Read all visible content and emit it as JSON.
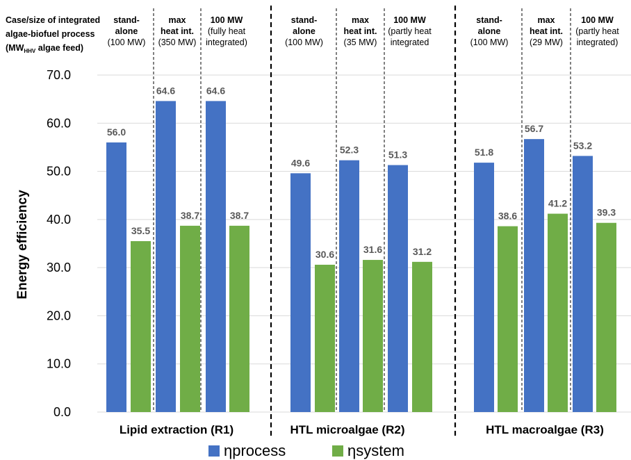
{
  "header": {
    "corner_label": [
      "Case/size of integrated",
      "algae-biofuel process"
    ],
    "corner_unit_prefix": "(MW",
    "corner_unit_sub": "HHV",
    "corner_unit_suffix": " algae feed)",
    "cases": [
      {
        "bold": [
          "stand-",
          "alone"
        ],
        "normal": [
          "(100 MW)"
        ]
      },
      {
        "bold": [
          "max",
          "heat int."
        ],
        "normal": [
          "(350 MW)"
        ]
      },
      {
        "bold": [
          "100 MW"
        ],
        "normal": [
          "(fully heat",
          "integrated)"
        ]
      },
      {
        "bold": [
          "stand-",
          "alone"
        ],
        "normal": [
          "(100 MW)"
        ]
      },
      {
        "bold": [
          "max",
          "heat int."
        ],
        "normal": [
          "(35 MW)"
        ]
      },
      {
        "bold": [
          "100 MW"
        ],
        "normal": [
          "(partly heat",
          "integrated"
        ]
      },
      {
        "bold": [
          "stand-",
          "alone"
        ],
        "normal": [
          "(100 MW)"
        ]
      },
      {
        "bold": [
          "max",
          "heat int."
        ],
        "normal": [
          "(29 MW)"
        ]
      },
      {
        "bold": [
          "100 MW"
        ],
        "normal": [
          "(partly heat",
          "integrated)"
        ]
      }
    ]
  },
  "chart_data": {
    "type": "bar",
    "ylabel": "Energy efficiency",
    "ylim": [
      0,
      70
    ],
    "yticks": [
      "0.0",
      "10.0",
      "20.0",
      "30.0",
      "40.0",
      "50.0",
      "60.0",
      "70.0"
    ],
    "grid": true,
    "legend_position": "bottom",
    "groups": [
      "Lipid extraction (R1)",
      "HTL microalgae (R2)",
      "HTL macroalgae (R3)"
    ],
    "series": [
      {
        "name": "ηprocess",
        "color": "#4472C4",
        "values": [
          56.0,
          64.6,
          64.6,
          49.6,
          52.3,
          51.3,
          51.8,
          56.7,
          53.2
        ]
      },
      {
        "name": "ηsystem",
        "color": "#70AD47",
        "values": [
          35.5,
          38.7,
          38.7,
          30.6,
          31.6,
          31.2,
          38.6,
          41.2,
          39.3
        ]
      }
    ],
    "value_labels": {
      "process": [
        "56.0",
        "64.6",
        "64.6",
        "49.6",
        "52.3",
        "51.3",
        "51.8",
        "56.7",
        "53.2"
      ],
      "system": [
        "35.5",
        "38.7",
        "38.7",
        "30.6",
        "31.6",
        "31.2",
        "38.6",
        "41.2",
        "39.3"
      ]
    }
  }
}
